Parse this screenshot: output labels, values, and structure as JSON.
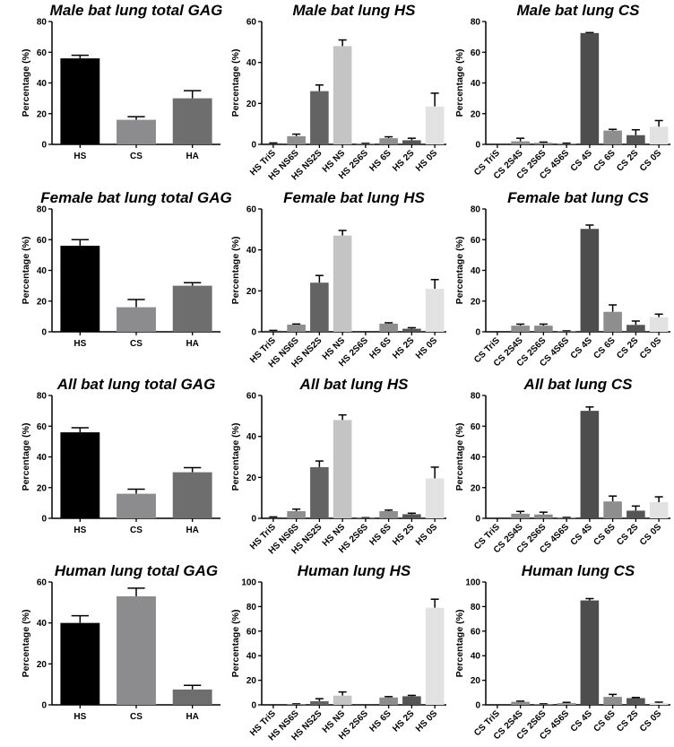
{
  "chart_data": [
    {
      "type": "bar",
      "title": "Male bat lung total GAG",
      "ylabel": "Percentage (%)",
      "ylim": [
        0,
        80
      ],
      "yticks": [
        0,
        20,
        40,
        60,
        80
      ],
      "categories": [
        "HS",
        "CS",
        "HA"
      ],
      "values": [
        56,
        16,
        30
      ],
      "errors": [
        2,
        2,
        5
      ],
      "colors": [
        "#000000",
        "#8c8c8f",
        "#6e6e6e"
      ]
    },
    {
      "type": "bar",
      "title": "Male bat lung HS",
      "ylabel": "Percentage (%)",
      "ylim": [
        0,
        60
      ],
      "yticks": [
        0,
        20,
        40,
        60
      ],
      "categories": [
        "HS TriS",
        "HS NS6S",
        "HS NS2S",
        "HS NS",
        "HS 2S6S",
        "HS 6S",
        "HS 2S",
        "HS 0S"
      ],
      "values": [
        0.5,
        4,
        26,
        48,
        0.3,
        3,
        2,
        18.5
      ],
      "errors": [
        0.2,
        1,
        3,
        3,
        0.2,
        0.7,
        1,
        6.5
      ],
      "colors": [
        "#444444",
        "#8e8e8e",
        "#636363",
        "#c4c4c4",
        "#888888",
        "#8e8e8e",
        "#555555",
        "#e2e2e2"
      ]
    },
    {
      "type": "bar",
      "title": "Male bat lung CS",
      "ylabel": "Percentage (%)",
      "ylim": [
        0,
        80
      ],
      "yticks": [
        0,
        20,
        40,
        60,
        80
      ],
      "categories": [
        "CS TriS",
        "CS 2S4S",
        "CS 2S6S",
        "CS 4S6S",
        "CS 4S",
        "CS 6S",
        "CS 2S",
        "CS 0S"
      ],
      "values": [
        0,
        2,
        1,
        0.3,
        72.5,
        9,
        6,
        11.5
      ],
      "errors": [
        0,
        2,
        0.5,
        0.5,
        0.3,
        0.8,
        3.5,
        4
      ],
      "colors": [
        "#444444",
        "#8e8e8e",
        "#8a8a8a",
        "#999999",
        "#4d4d4d",
        "#8e8e8e",
        "#555555",
        "#e2e2e2"
      ]
    },
    {
      "type": "bar",
      "title": "Female bat lung total GAG",
      "ylabel": "Percentage (%)",
      "ylim": [
        0,
        80
      ],
      "yticks": [
        0,
        20,
        40,
        60,
        80
      ],
      "categories": [
        "HS",
        "CS",
        "HA"
      ],
      "values": [
        56,
        16,
        30
      ],
      "errors": [
        4,
        5,
        2
      ],
      "colors": [
        "#000000",
        "#8c8c8f",
        "#6e6e6e"
      ]
    },
    {
      "type": "bar",
      "title": "Female bat lung HS",
      "ylabel": "Percentage (%)",
      "ylim": [
        0,
        60
      ],
      "yticks": [
        0,
        20,
        40,
        60
      ],
      "categories": [
        "HS TriS",
        "HS NS6S",
        "HS NS2S",
        "HS NS",
        "HS 2S6S",
        "HS 6S",
        "HS 2S",
        "HS 0S"
      ],
      "values": [
        0.5,
        3.5,
        24,
        47,
        0,
        4,
        1.5,
        21
      ],
      "errors": [
        0.2,
        0.3,
        3.5,
        2.5,
        0,
        0.4,
        0.5,
        4.5
      ],
      "colors": [
        "#444444",
        "#8e8e8e",
        "#636363",
        "#c4c4c4",
        "#888888",
        "#8e8e8e",
        "#555555",
        "#e2e2e2"
      ]
    },
    {
      "type": "bar",
      "title": "Female bat lung CS",
      "ylabel": "Percentage (%)",
      "ylim": [
        0,
        80
      ],
      "yticks": [
        0,
        20,
        40,
        60,
        80
      ],
      "categories": [
        "CS TriS",
        "CS 2S4S",
        "CS 2S6S",
        "CS 4S6S",
        "CS 4S",
        "CS 6S",
        "CS 2S",
        "CS 0S"
      ],
      "values": [
        0,
        4,
        4,
        0.3,
        67,
        13,
        4.5,
        9.5
      ],
      "errors": [
        0,
        1,
        1,
        0.3,
        2.5,
        4.5,
        2.5,
        2
      ],
      "colors": [
        "#444444",
        "#8e8e8e",
        "#8a8a8a",
        "#999999",
        "#4d4d4d",
        "#8e8e8e",
        "#555555",
        "#e2e2e2"
      ]
    },
    {
      "type": "bar",
      "title": "All bat lung total GAG",
      "ylabel": "Percentage (%)",
      "ylim": [
        0,
        80
      ],
      "yticks": [
        0,
        20,
        40,
        60,
        80
      ],
      "categories": [
        "HS",
        "CS",
        "HA"
      ],
      "values": [
        56,
        16,
        30
      ],
      "errors": [
        3,
        3,
        3
      ],
      "colors": [
        "#000000",
        "#8c8c8f",
        "#6e6e6e"
      ]
    },
    {
      "type": "bar",
      "title": "All bat lung HS",
      "ylabel": "Percentage (%)",
      "ylim": [
        0,
        60
      ],
      "yticks": [
        0,
        20,
        40,
        60
      ],
      "categories": [
        "HS TriS",
        "HS NS6S",
        "HS NS2S",
        "HS NS",
        "HS 2S6S",
        "HS 6S",
        "HS 2S",
        "HS 0S"
      ],
      "values": [
        0.5,
        3.5,
        25,
        48,
        0.2,
        3.5,
        2,
        19.5
      ],
      "errors": [
        0.2,
        1,
        3,
        2.5,
        0.1,
        0.5,
        0.5,
        5.5
      ],
      "colors": [
        "#444444",
        "#8e8e8e",
        "#636363",
        "#c4c4c4",
        "#888888",
        "#8e8e8e",
        "#555555",
        "#e2e2e2"
      ]
    },
    {
      "type": "bar",
      "title": "All bat lung CS",
      "ylabel": "Percentage (%)",
      "ylim": [
        0,
        80
      ],
      "yticks": [
        0,
        20,
        40,
        60,
        80
      ],
      "categories": [
        "CS TriS",
        "CS 2S4S",
        "CS 2S6S",
        "CS 4S6S",
        "CS 4S",
        "CS 6S",
        "CS 2S",
        "CS 0S"
      ],
      "values": [
        0,
        3,
        2.5,
        0.3,
        70,
        11,
        5,
        10.5
      ],
      "errors": [
        0,
        1.5,
        1.5,
        0.3,
        2.5,
        3.5,
        3,
        3.5
      ],
      "colors": [
        "#444444",
        "#8e8e8e",
        "#8a8a8a",
        "#999999",
        "#4d4d4d",
        "#8e8e8e",
        "#555555",
        "#e2e2e2"
      ]
    },
    {
      "type": "bar",
      "title": "Human lung total GAG",
      "ylabel": "Percentage (%)",
      "ylim": [
        0,
        60
      ],
      "yticks": [
        0,
        20,
        40,
        60
      ],
      "categories": [
        "HS",
        "CS",
        "HA"
      ],
      "values": [
        40,
        53,
        7.5
      ],
      "errors": [
        3.5,
        4,
        2
      ],
      "colors": [
        "#000000",
        "#8c8c8f",
        "#6e6e6e"
      ]
    },
    {
      "type": "bar",
      "title": "Human lung HS",
      "ylabel": "Percentage (%)",
      "ylim": [
        0,
        100
      ],
      "yticks": [
        0,
        20,
        40,
        60,
        80,
        100
      ],
      "categories": [
        "HS TriS",
        "HS NS6S",
        "HS NS2S",
        "HS NS",
        "HS 2S6S",
        "HS 6S",
        "HS 2S",
        "HS 0S"
      ],
      "values": [
        0,
        0.5,
        3,
        7.5,
        0,
        6,
        7,
        79
      ],
      "errors": [
        0,
        0.3,
        2,
        3,
        0,
        0.7,
        0.7,
        7
      ],
      "colors": [
        "#444444",
        "#8e8e8e",
        "#636363",
        "#c4c4c4",
        "#888888",
        "#8e8e8e",
        "#555555",
        "#e2e2e2"
      ]
    },
    {
      "type": "bar",
      "title": "Human lung CS",
      "ylabel": "Percentage (%)",
      "ylim": [
        0,
        100
      ],
      "yticks": [
        0,
        20,
        40,
        60,
        80,
        100
      ],
      "categories": [
        "CS TriS",
        "CS 2S4S",
        "CS 2S6S",
        "CS 4S6S",
        "CS 4S",
        "CS 6S",
        "CS 2S",
        "CS 0S"
      ],
      "values": [
        0,
        2.5,
        0.5,
        1.5,
        85,
        6.5,
        5.5,
        1.5
      ],
      "errors": [
        0,
        0.5,
        0.3,
        0.5,
        1.5,
        2,
        0.5,
        0.7
      ],
      "colors": [
        "#444444",
        "#8e8e8e",
        "#8a8a8a",
        "#999999",
        "#4d4d4d",
        "#8e8e8e",
        "#555555",
        "#e2e2e2"
      ]
    }
  ]
}
